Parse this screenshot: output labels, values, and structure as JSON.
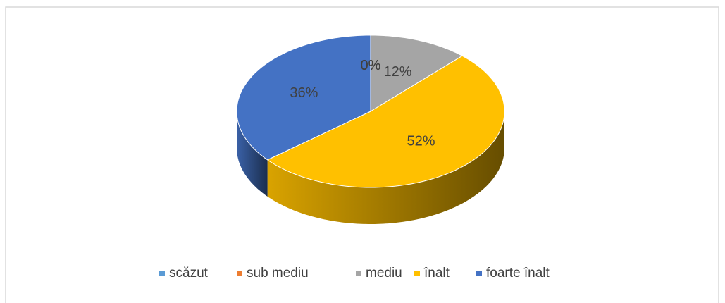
{
  "chart_data": {
    "type": "pie",
    "categories": [
      "scăzut",
      "sub mediu",
      "mediu",
      "înalt",
      "foarte înalt"
    ],
    "values": [
      0,
      0,
      12,
      52,
      36
    ],
    "value_labels": [
      "0%",
      "0%",
      "12%",
      "52%",
      "36%"
    ],
    "colors": [
      "#5b9bd5",
      "#ed7d31",
      "#a5a5a5",
      "#ffc000",
      "#4472c4"
    ],
    "legend": "bottom"
  }
}
